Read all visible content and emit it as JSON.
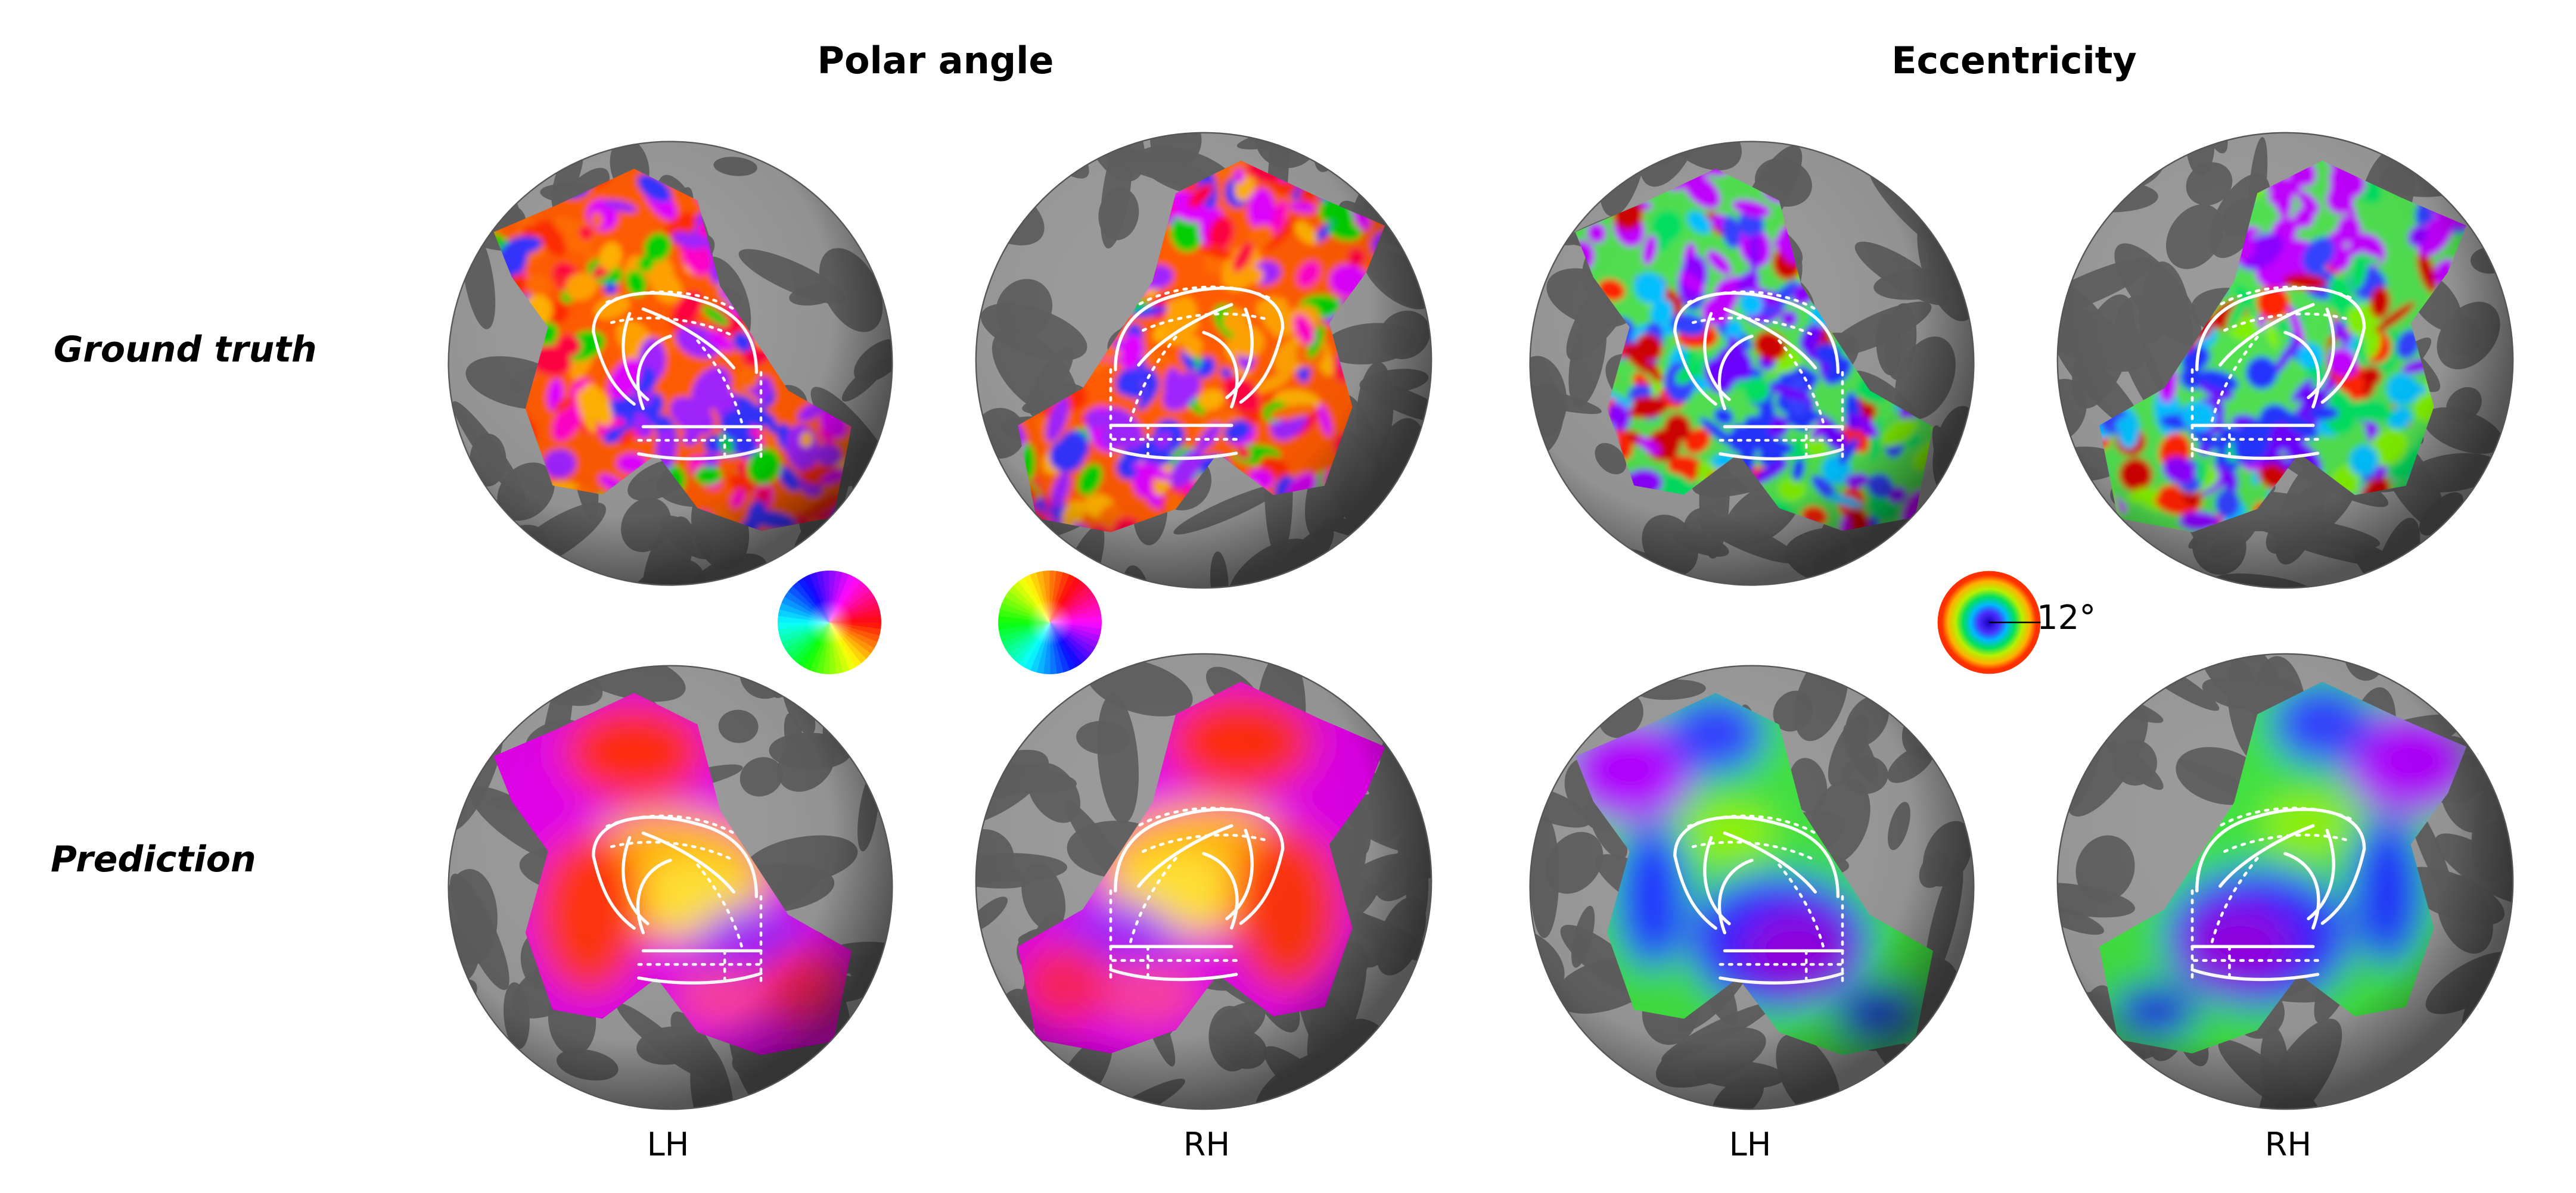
{
  "titles": {
    "polar_angle": "Polar angle",
    "eccentricity": "Eccentricity"
  },
  "rows": {
    "ground_truth": "Ground truth",
    "prediction": "Prediction"
  },
  "hemispheres": {
    "lh": "LH",
    "rh": "RH"
  },
  "legend": {
    "eccentricity_max": "12°"
  },
  "panels": [
    {
      "row": "ground_truth",
      "measure": "polar_angle",
      "hemi": "LH",
      "style": "noisy"
    },
    {
      "row": "ground_truth",
      "measure": "polar_angle",
      "hemi": "RH",
      "style": "noisy"
    },
    {
      "row": "ground_truth",
      "measure": "eccentricity",
      "hemi": "LH",
      "style": "noisy"
    },
    {
      "row": "ground_truth",
      "measure": "eccentricity",
      "hemi": "RH",
      "style": "noisy"
    },
    {
      "row": "prediction",
      "measure": "polar_angle",
      "hemi": "LH",
      "style": "smooth"
    },
    {
      "row": "prediction",
      "measure": "polar_angle",
      "hemi": "RH",
      "style": "smooth"
    },
    {
      "row": "prediction",
      "measure": "eccentricity",
      "hemi": "LH",
      "style": "smooth"
    },
    {
      "row": "prediction",
      "measure": "eccentricity",
      "hemi": "RH",
      "style": "smooth"
    }
  ],
  "colors": {
    "sphere_light": "#9a9a9a",
    "sphere_dark": "#5e5e5e",
    "boundary_lines": "#ffffff"
  }
}
